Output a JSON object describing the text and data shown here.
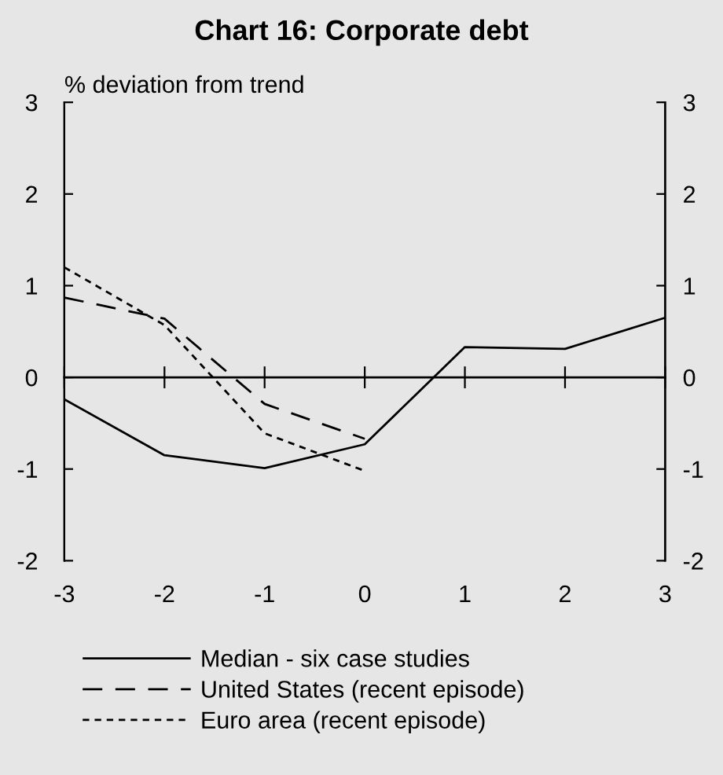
{
  "chart_data": {
    "type": "line",
    "title": "Chart 16: Corporate debt",
    "ylabel": "% deviation from trend",
    "x": [
      -3,
      -2,
      -1,
      0,
      1,
      2,
      3
    ],
    "series": [
      {
        "name": "Median - six case studies",
        "color": "#000000",
        "line_style": "solid",
        "values": [
          -0.24,
          -0.85,
          -0.99,
          -0.73,
          0.33,
          0.31,
          0.65
        ]
      },
      {
        "name": "United States (recent episode)",
        "color": "#000000",
        "line_style": "dashed",
        "values": [
          0.87,
          0.64,
          -0.29,
          -0.67,
          null,
          null,
          null
        ]
      },
      {
        "name": "Euro area (recent episode)",
        "color": "#000000",
        "line_style": "dotted",
        "values": [
          1.2,
          0.57,
          -0.61,
          -1.02,
          null,
          null,
          null
        ]
      }
    ],
    "xlim": [
      -3,
      3
    ],
    "xticks": [
      -3,
      -2,
      -1,
      0,
      1,
      2,
      3
    ],
    "ylim": [
      -2,
      3
    ],
    "yticks": [
      -2,
      -1,
      0,
      1,
      2,
      3
    ],
    "y2lim": [
      -2,
      3
    ],
    "y2ticks": [
      -2,
      -1,
      0,
      1,
      2,
      3
    ],
    "legend": "bottom",
    "marker": "none"
  }
}
